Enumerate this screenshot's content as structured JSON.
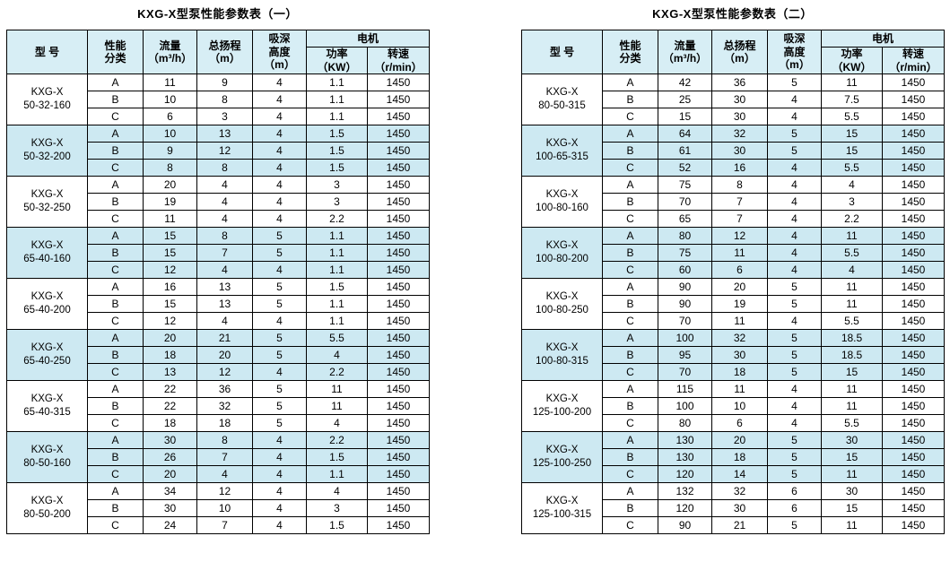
{
  "colors": {
    "header_bg": "#d7eef5",
    "stripe": "#cde9f2",
    "border": "#000000"
  },
  "headers": {
    "model": "型 号",
    "category": "性能\n分类",
    "flow": "流量\n（m³/h）",
    "head": "总扬程\n（m）",
    "suction": "吸深\n高度\n（m）",
    "motor": "电机",
    "power": "功率\n（KW）",
    "speed": "转速\n（r/min）"
  },
  "tables": [
    {
      "title": "KXG-X型泵性能参数表（一）",
      "groups": [
        {
          "model": "KXG-X\n50-32-160",
          "rows": [
            [
              "A",
              "11",
              "9",
              "4",
              "1.1",
              "1450"
            ],
            [
              "B",
              "10",
              "8",
              "4",
              "1.1",
              "1450"
            ],
            [
              "C",
              "6",
              "3",
              "4",
              "1.1",
              "1450"
            ]
          ]
        },
        {
          "model": "KXG-X\n50-32-200",
          "rows": [
            [
              "A",
              "10",
              "13",
              "4",
              "1.5",
              "1450"
            ],
            [
              "B",
              "9",
              "12",
              "4",
              "1.5",
              "1450"
            ],
            [
              "C",
              "8",
              "8",
              "4",
              "1.5",
              "1450"
            ]
          ]
        },
        {
          "model": "KXG-X\n50-32-250",
          "rows": [
            [
              "A",
              "20",
              "4",
              "4",
              "3",
              "1450"
            ],
            [
              "B",
              "19",
              "4",
              "4",
              "3",
              "1450"
            ],
            [
              "C",
              "11",
              "4",
              "4",
              "2.2",
              "1450"
            ]
          ]
        },
        {
          "model": "KXG-X\n65-40-160",
          "rows": [
            [
              "A",
              "15",
              "8",
              "5",
              "1.1",
              "1450"
            ],
            [
              "B",
              "15",
              "7",
              "5",
              "1.1",
              "1450"
            ],
            [
              "C",
              "12",
              "4",
              "4",
              "1.1",
              "1450"
            ]
          ]
        },
        {
          "model": "KXG-X\n65-40-200",
          "rows": [
            [
              "A",
              "16",
              "13",
              "5",
              "1.5",
              "1450"
            ],
            [
              "B",
              "15",
              "13",
              "5",
              "1.1",
              "1450"
            ],
            [
              "C",
              "12",
              "4",
              "4",
              "1.1",
              "1450"
            ]
          ]
        },
        {
          "model": "KXG-X\n65-40-250",
          "rows": [
            [
              "A",
              "20",
              "21",
              "5",
              "5.5",
              "1450"
            ],
            [
              "B",
              "18",
              "20",
              "5",
              "4",
              "1450"
            ],
            [
              "C",
              "13",
              "12",
              "4",
              "2.2",
              "1450"
            ]
          ]
        },
        {
          "model": "KXG-X\n65-40-315",
          "rows": [
            [
              "A",
              "22",
              "36",
              "5",
              "11",
              "1450"
            ],
            [
              "B",
              "22",
              "32",
              "5",
              "11",
              "1450"
            ],
            [
              "C",
              "18",
              "18",
              "5",
              "4",
              "1450"
            ]
          ]
        },
        {
          "model": "KXG-X\n80-50-160",
          "rows": [
            [
              "A",
              "30",
              "8",
              "4",
              "2.2",
              "1450"
            ],
            [
              "B",
              "26",
              "7",
              "4",
              "1.5",
              "1450"
            ],
            [
              "C",
              "20",
              "4",
              "4",
              "1.1",
              "1450"
            ]
          ]
        },
        {
          "model": "KXG-X\n80-50-200",
          "rows": [
            [
              "A",
              "34",
              "12",
              "4",
              "4",
              "1450"
            ],
            [
              "B",
              "30",
              "10",
              "4",
              "3",
              "1450"
            ],
            [
              "C",
              "24",
              "7",
              "4",
              "1.5",
              "1450"
            ]
          ]
        }
      ]
    },
    {
      "title": "KXG-X型泵性能参数表（二）",
      "groups": [
        {
          "model": "KXG-X\n80-50-315",
          "rows": [
            [
              "A",
              "42",
              "36",
              "5",
              "11",
              "1450"
            ],
            [
              "B",
              "25",
              "30",
              "4",
              "7.5",
              "1450"
            ],
            [
              "C",
              "15",
              "30",
              "4",
              "5.5",
              "1450"
            ]
          ]
        },
        {
          "model": "KXG-X\n100-65-315",
          "rows": [
            [
              "A",
              "64",
              "32",
              "5",
              "15",
              "1450"
            ],
            [
              "B",
              "61",
              "30",
              "5",
              "15",
              "1450"
            ],
            [
              "C",
              "52",
              "16",
              "4",
              "5.5",
              "1450"
            ]
          ]
        },
        {
          "model": "KXG-X\n100-80-160",
          "rows": [
            [
              "A",
              "75",
              "8",
              "4",
              "4",
              "1450"
            ],
            [
              "B",
              "70",
              "7",
              "4",
              "3",
              "1450"
            ],
            [
              "C",
              "65",
              "7",
              "4",
              "2.2",
              "1450"
            ]
          ]
        },
        {
          "model": "KXG-X\n100-80-200",
          "rows": [
            [
              "A",
              "80",
              "12",
              "4",
              "11",
              "1450"
            ],
            [
              "B",
              "75",
              "11",
              "4",
              "5.5",
              "1450"
            ],
            [
              "C",
              "60",
              "6",
              "4",
              "4",
              "1450"
            ]
          ]
        },
        {
          "model": "KXG-X\n100-80-250",
          "rows": [
            [
              "A",
              "90",
              "20",
              "5",
              "11",
              "1450"
            ],
            [
              "B",
              "90",
              "19",
              "5",
              "11",
              "1450"
            ],
            [
              "C",
              "70",
              "11",
              "4",
              "5.5",
              "1450"
            ]
          ]
        },
        {
          "model": "KXG-X\n100-80-315",
          "rows": [
            [
              "A",
              "100",
              "32",
              "5",
              "18.5",
              "1450"
            ],
            [
              "B",
              "95",
              "30",
              "5",
              "18.5",
              "1450"
            ],
            [
              "C",
              "70",
              "18",
              "5",
              "15",
              "1450"
            ]
          ]
        },
        {
          "model": "KXG-X\n125-100-200",
          "rows": [
            [
              "A",
              "115",
              "11",
              "4",
              "11",
              "1450"
            ],
            [
              "B",
              "100",
              "10",
              "4",
              "11",
              "1450"
            ],
            [
              "C",
              "80",
              "6",
              "4",
              "5.5",
              "1450"
            ]
          ]
        },
        {
          "model": "KXG-X\n125-100-250",
          "rows": [
            [
              "A",
              "130",
              "20",
              "5",
              "30",
              "1450"
            ],
            [
              "B",
              "130",
              "18",
              "5",
              "15",
              "1450"
            ],
            [
              "C",
              "120",
              "14",
              "5",
              "11",
              "1450"
            ]
          ]
        },
        {
          "model": "KXG-X\n125-100-315",
          "rows": [
            [
              "A",
              "132",
              "32",
              "6",
              "30",
              "1450"
            ],
            [
              "B",
              "120",
              "30",
              "6",
              "15",
              "1450"
            ],
            [
              "C",
              "90",
              "21",
              "5",
              "11",
              "1450"
            ]
          ]
        }
      ]
    }
  ]
}
